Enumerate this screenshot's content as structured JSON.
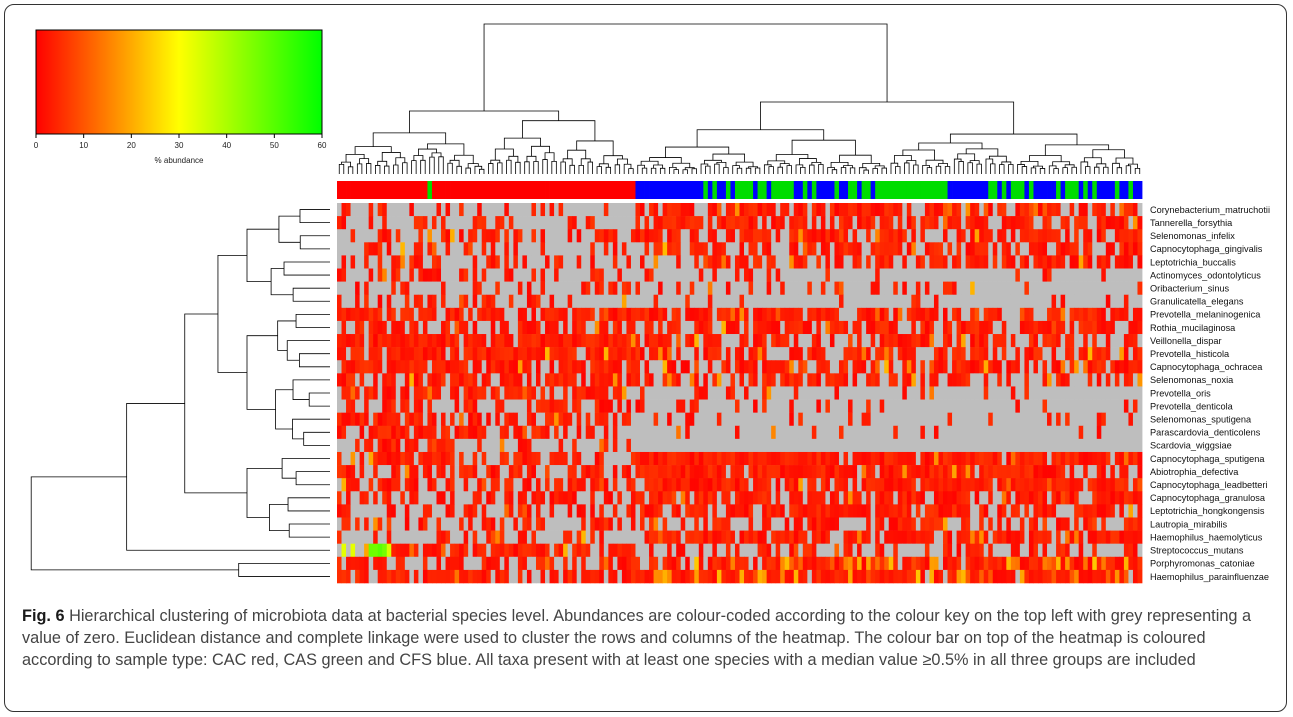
{
  "chart_data": {
    "type": "heatmap",
    "color_key": {
      "label": "% abundance",
      "ticks": [
        0,
        10,
        20,
        30,
        40,
        50,
        60
      ],
      "range": [
        0,
        60
      ],
      "gradient": [
        "#ff0000",
        "#ff8000",
        "#ffff00",
        "#80ff00",
        "#00ff00"
      ],
      "zero_color": "#bebebe"
    },
    "rows": [
      "Corynebacterium_matruchotii",
      "Tannerella_forsythia",
      "Selenomonas_infelix",
      "Capnocytophaga_gingivalis",
      "Leptotrichia_buccalis",
      "Actinomyces_odontolyticus",
      "Oribacterium_sinus",
      "Granulicatella_elegans",
      "Prevotella_melaninogenica",
      "Rothia_mucilaginosa",
      "Veillonella_dispar",
      "Prevotella_histicola",
      "Capnocytophaga_ochracea",
      "Selenomonas_noxia",
      "Prevotella_oris",
      "Prevotella_denticola",
      "Selenomonas_sputigena",
      "Parascardovia_denticolens",
      "Scardovia_wiggsiae",
      "Capnocytophaga_sputigena",
      "Abiotrophia_defectiva",
      "Capnocytophaga_leadbetteri",
      "Capnocytophaga_granulosa",
      "Leptotrichia_hongkongensis",
      "Lautropia_mirabilis",
      "Haemophilus_haemolyticus",
      "Streptococcus_mutans",
      "Porphyromonas_catoniae",
      "Haemophilus_parainfluenzae"
    ],
    "sample_type_colors": {
      "CAC": "#ff0000",
      "CAS": "#00dd00",
      "CFS": "#0000ff"
    },
    "sample_groups": [
      {
        "type": "CAC",
        "count": 20
      },
      {
        "type": "CAS",
        "count": 1
      },
      {
        "type": "CAC",
        "count": 45
      },
      {
        "type": "CFS",
        "count": 14
      },
      {
        "type": "CAS/CFS mixed",
        "count": 40
      },
      {
        "type": "CAS",
        "count": 15
      },
      {
        "type": "CFS",
        "count": 8
      },
      {
        "type": "CAS/CFS mixed",
        "count": 35
      }
    ],
    "linkage": "complete",
    "distance": "euclidean"
  },
  "caption": {
    "label": "Fig. 6",
    "text": "Hierarchical clustering of microbiota data at bacterial species level. Abundances are colour-coded according to the colour key on the top left with grey representing a value of zero. Euclidean distance and complete linkage were used to cluster the rows and columns of the heatmap. The colour bar on top of the heatmap is coloured according to sample type: CAC red, CAS green and CFS blue. All taxa present with at least one species with a median value ≥0.5% in all three groups are included"
  }
}
